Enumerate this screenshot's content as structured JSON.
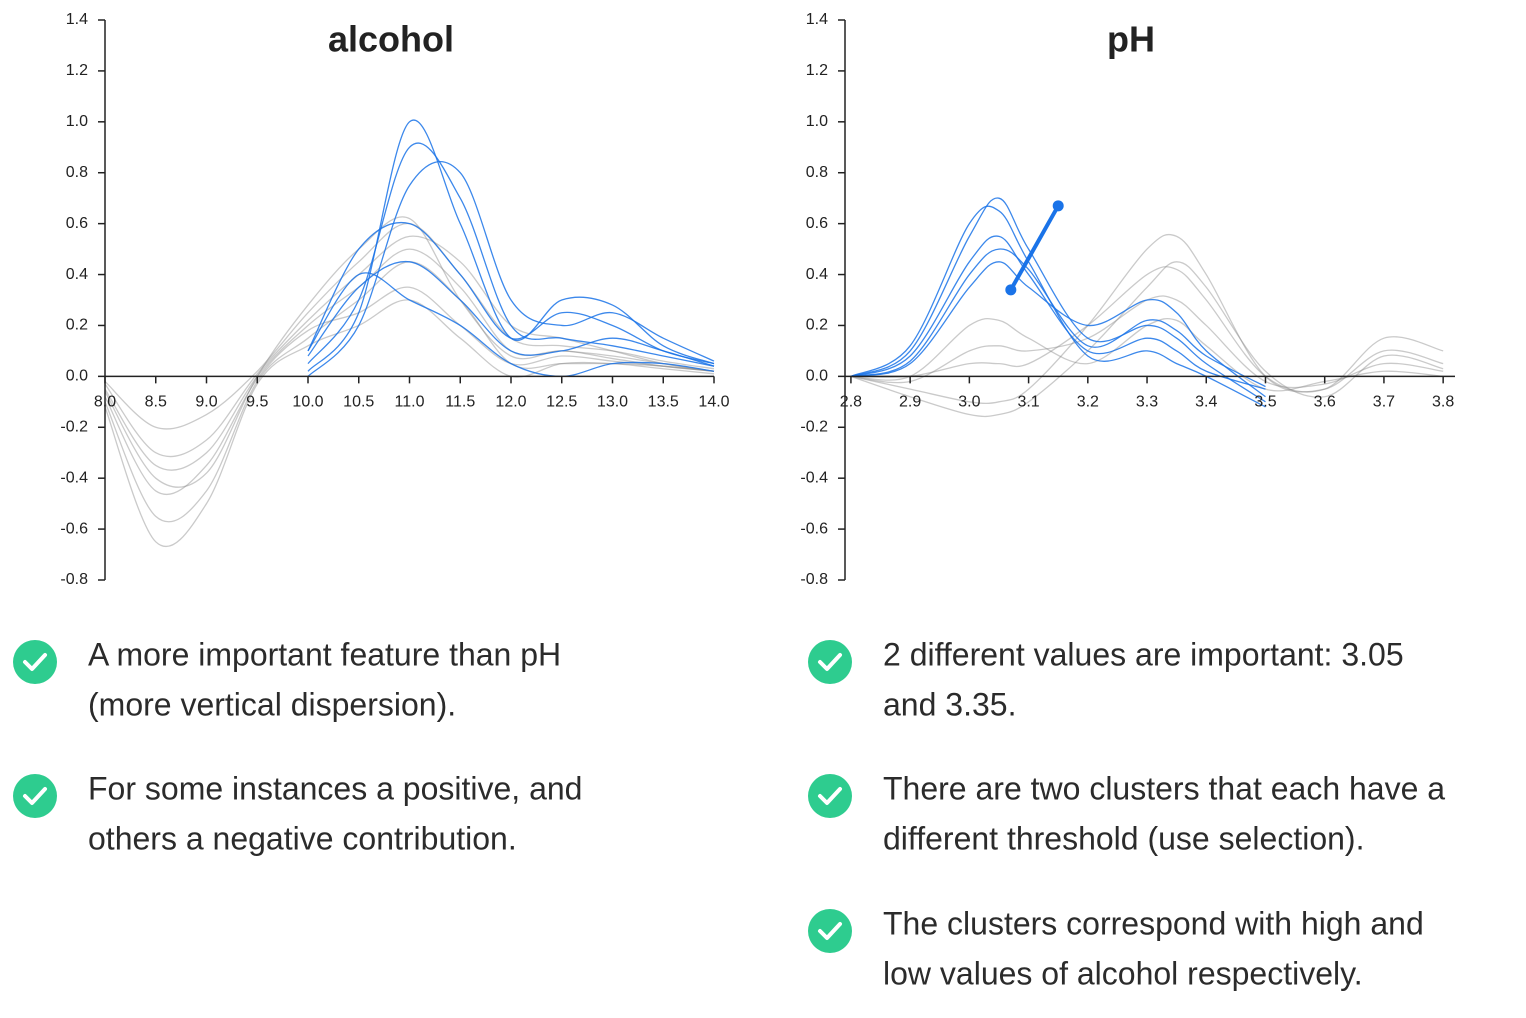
{
  "chart_data": [
    {
      "type": "line",
      "title": "alcohol",
      "x": [
        8.0,
        8.5,
        9.0,
        9.5,
        10.0,
        10.5,
        11.0,
        11.5,
        12.0,
        12.5,
        13.0,
        13.5,
        14.0
      ],
      "xlim": [
        8,
        14
      ],
      "xticks": [
        {
          "value": 8,
          "label": "8.0"
        },
        8.5,
        {
          "value": 9,
          "label": "9.0"
        },
        9.5,
        {
          "value": 10,
          "label": "10.0"
        },
        10.5,
        {
          "value": 11,
          "label": "11.0"
        },
        11.5,
        {
          "value": 12,
          "label": "12.0"
        },
        12.5,
        {
          "value": 13,
          "label": "13.0"
        },
        13.5,
        {
          "value": 14,
          "label": "14.0"
        }
      ],
      "ylim": [
        -0.8,
        1.4
      ],
      "yticks": [
        1.4,
        1.2,
        {
          "value": 1,
          "label": "1.0"
        },
        0.8,
        0.6,
        0.4,
        0.2,
        {
          "value": 0,
          "label": "0.0"
        },
        -0.2,
        -0.4,
        -0.6,
        -0.8
      ],
      "series": [
        {
          "color": "#8a8a8a",
          "values": [
            -0.05,
            -0.35,
            -0.3,
            0.0,
            0.2,
            0.35,
            0.5,
            0.35,
            0.1,
            0.1,
            0.08,
            0.05,
            0.02
          ]
        },
        {
          "color": "#8a8a8a",
          "values": [
            -0.1,
            -0.55,
            -0.45,
            -0.02,
            0.15,
            0.3,
            0.45,
            0.3,
            0.05,
            0.05,
            0.05,
            0.04,
            0.02
          ]
        },
        {
          "color": "#8a8a8a",
          "values": [
            -0.02,
            -0.2,
            -0.15,
            0.02,
            0.25,
            0.45,
            0.6,
            0.4,
            0.15,
            0.12,
            0.1,
            0.06,
            0.03
          ]
        },
        {
          "color": "#8a8a8a",
          "values": [
            -0.08,
            -0.45,
            -0.35,
            -0.01,
            0.18,
            0.25,
            0.35,
            0.2,
            0.05,
            0.08,
            0.06,
            0.04,
            0.02
          ]
        },
        {
          "color": "#8a8a8a",
          "values": [
            -0.03,
            -0.3,
            -0.25,
            0.01,
            0.22,
            0.4,
            0.55,
            0.45,
            0.2,
            0.15,
            0.1,
            0.05,
            0.02
          ]
        },
        {
          "color": "#8a8a8a",
          "values": [
            -0.12,
            -0.65,
            -0.5,
            -0.03,
            0.12,
            0.2,
            0.3,
            0.15,
            0.0,
            0.05,
            0.05,
            0.03,
            0.01
          ]
        },
        {
          "color": "#8a8a8a",
          "values": [
            -0.06,
            -0.4,
            -0.38,
            0.0,
            0.28,
            0.5,
            0.62,
            0.3,
            0.08,
            0.1,
            0.07,
            0.04,
            0.02
          ]
        },
        {
          "color": "#1a73e8",
          "values": [
            null,
            null,
            null,
            null,
            0.05,
            0.3,
            0.9,
            0.7,
            0.2,
            0.15,
            0.12,
            0.08,
            0.04
          ]
        },
        {
          "color": "#1a73e8",
          "values": [
            null,
            null,
            null,
            null,
            0.1,
            0.5,
            0.6,
            0.4,
            0.15,
            0.25,
            0.2,
            0.1,
            0.05
          ]
        },
        {
          "color": "#1a73e8",
          "values": [
            null,
            null,
            null,
            null,
            0.0,
            0.2,
            0.75,
            0.8,
            0.3,
            0.2,
            0.25,
            0.15,
            0.06
          ]
        },
        {
          "color": "#1a73e8",
          "values": [
            null,
            null,
            null,
            null,
            0.08,
            0.35,
            0.45,
            0.3,
            0.1,
            0.1,
            0.15,
            0.1,
            0.04
          ]
        },
        {
          "color": "#1a73e8",
          "values": [
            null,
            null,
            null,
            null,
            0.02,
            0.25,
            1.0,
            0.6,
            0.15,
            0.3,
            0.28,
            0.12,
            0.05
          ]
        },
        {
          "color": "#1a73e8",
          "values": [
            null,
            null,
            null,
            null,
            0.1,
            0.4,
            0.3,
            0.2,
            0.05,
            0.0,
            0.05,
            0.05,
            0.02
          ]
        }
      ]
    },
    {
      "type": "line",
      "title": "pH",
      "x": [
        2.8,
        2.9,
        3.0,
        3.05,
        3.1,
        3.2,
        3.3,
        3.35,
        3.4,
        3.5,
        3.6,
        3.7,
        3.8
      ],
      "xlim": [
        2.79,
        3.82
      ],
      "xticks": [
        2.8,
        2.9,
        {
          "value": 3,
          "label": "3.0"
        },
        3.1,
        3.2,
        3.3,
        3.4,
        3.5,
        3.6,
        3.7,
        3.8
      ],
      "ylim": [
        -0.8,
        1.4
      ],
      "yticks": [
        1.4,
        1.2,
        {
          "value": 1,
          "label": "1.0"
        },
        0.8,
        0.6,
        0.4,
        0.2,
        {
          "value": 0,
          "label": "0.0"
        },
        -0.2,
        -0.4,
        -0.6,
        -0.8
      ],
      "series": [
        {
          "color": "#8a8a8a",
          "values": [
            0.0,
            -0.05,
            -0.1,
            -0.1,
            -0.05,
            0.2,
            0.5,
            0.55,
            0.4,
            0.0,
            -0.05,
            0.1,
            0.05
          ]
        },
        {
          "color": "#8a8a8a",
          "values": [
            0.0,
            0.0,
            0.05,
            0.05,
            0.05,
            0.2,
            0.4,
            0.42,
            0.3,
            0.0,
            -0.05,
            0.15,
            0.1
          ]
        },
        {
          "color": "#8a8a8a",
          "values": [
            0.0,
            -0.02,
            0.1,
            0.12,
            0.1,
            0.15,
            0.3,
            0.3,
            0.2,
            -0.02,
            -0.03,
            0.05,
            0.02
          ]
        },
        {
          "color": "#8a8a8a",
          "values": [
            0.0,
            -0.08,
            -0.15,
            -0.15,
            -0.1,
            0.1,
            0.35,
            0.45,
            0.35,
            0.02,
            -0.08,
            0.08,
            0.03
          ]
        },
        {
          "color": "#8a8a8a",
          "values": [
            0.0,
            0.0,
            0.2,
            0.22,
            0.15,
            0.05,
            0.2,
            0.22,
            0.12,
            -0.05,
            -0.02,
            0.02,
            0.0
          ]
        },
        {
          "color": "#1a73e8",
          "values": [
            0.0,
            0.1,
            0.55,
            0.7,
            0.5,
            0.15,
            0.2,
            0.15,
            0.05,
            -0.1,
            null,
            null,
            null
          ]
        },
        {
          "color": "#1a73e8",
          "values": [
            0.0,
            0.08,
            0.45,
            0.55,
            0.4,
            0.1,
            0.15,
            0.1,
            0.02,
            -0.05,
            null,
            null,
            null
          ]
        },
        {
          "color": "#1a73e8",
          "values": [
            0.0,
            0.05,
            0.35,
            0.45,
            0.35,
            0.2,
            0.3,
            0.25,
            0.1,
            -0.08,
            null,
            null,
            null
          ]
        },
        {
          "color": "#1a73e8",
          "values": [
            0.0,
            0.12,
            0.6,
            0.65,
            0.45,
            0.08,
            0.1,
            0.05,
            0.0,
            -0.12,
            null,
            null,
            null
          ]
        },
        {
          "color": "#1a73e8",
          "values": [
            0.0,
            0.06,
            0.4,
            0.5,
            0.42,
            0.12,
            0.22,
            0.18,
            0.08,
            -0.04,
            null,
            null,
            null
          ]
        }
      ],
      "selection": {
        "color": "#1a73e8",
        "x": [
          3.07,
          3.15
        ],
        "y": [
          0.34,
          0.67
        ]
      }
    }
  ],
  "bullets": {
    "left": [
      [
        "A more important feature than pH",
        "(more vertical dispersion)."
      ],
      [
        "For some instances a positive, and",
        "others a negative contribution."
      ]
    ],
    "right": [
      [
        "2 different values are important: 3.05",
        "and 3.35."
      ],
      [
        "There are two clusters that each have a",
        "different threshold (use selection)."
      ],
      [
        "The clusters correspond with high and",
        "low values of alcohol respectively."
      ]
    ]
  }
}
